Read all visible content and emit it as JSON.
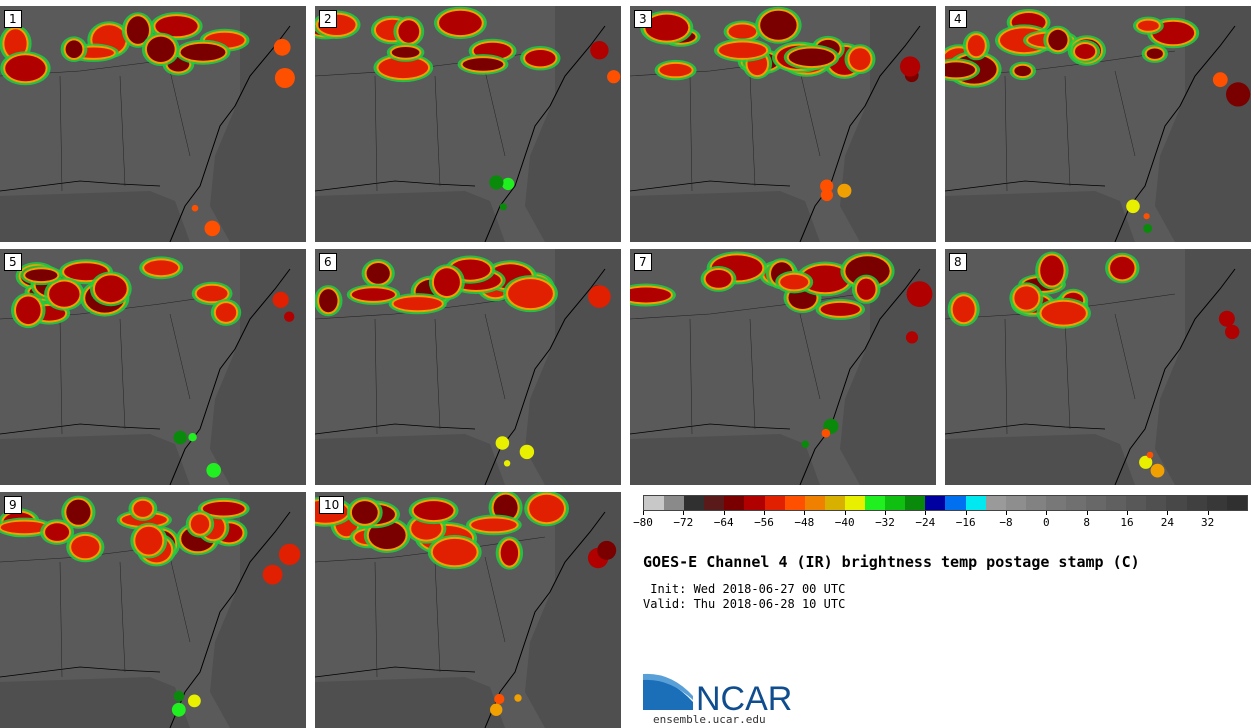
{
  "panels": [
    {
      "label": "1"
    },
    {
      "label": "2"
    },
    {
      "label": "3"
    },
    {
      "label": "4"
    },
    {
      "label": "5"
    },
    {
      "label": "6"
    },
    {
      "label": "7"
    },
    {
      "label": "8"
    },
    {
      "label": "9"
    },
    {
      "label": "10"
    }
  ],
  "title": "GOES-E Channel 4 (IR) brightness temp postage stamp (C)",
  "init_line": " Init: Wed 2018-06-27 00 UTC",
  "valid_line": "Valid: Thu 2018-06-28 10 UTC",
  "colorbar": {
    "colors": [
      "#c8c8c8",
      "#8a8a8a",
      "#303030",
      "#5a1a1a",
      "#7a0000",
      "#b00000",
      "#e02000",
      "#ff5000",
      "#f08000",
      "#d8b000",
      "#e8f000",
      "#20f020",
      "#10c010",
      "#0a8a0a",
      "#0000a0",
      "#0070f0",
      "#00e8f0",
      "#9a9a9a",
      "#8e8e8e",
      "#828282",
      "#787878",
      "#707070",
      "#686868",
      "#606060",
      "#585858",
      "#505050",
      "#484848",
      "#404040",
      "#383838",
      "#303030"
    ],
    "tick_labels": [
      "−80",
      "−72",
      "−64",
      "−56",
      "−48",
      "−40",
      "−32",
      "−24",
      "−16",
      "−8",
      "0",
      "8",
      "16",
      "24",
      "32"
    ]
  },
  "logo_text": "NCAR",
  "url": "ensemble.ucar.edu"
}
